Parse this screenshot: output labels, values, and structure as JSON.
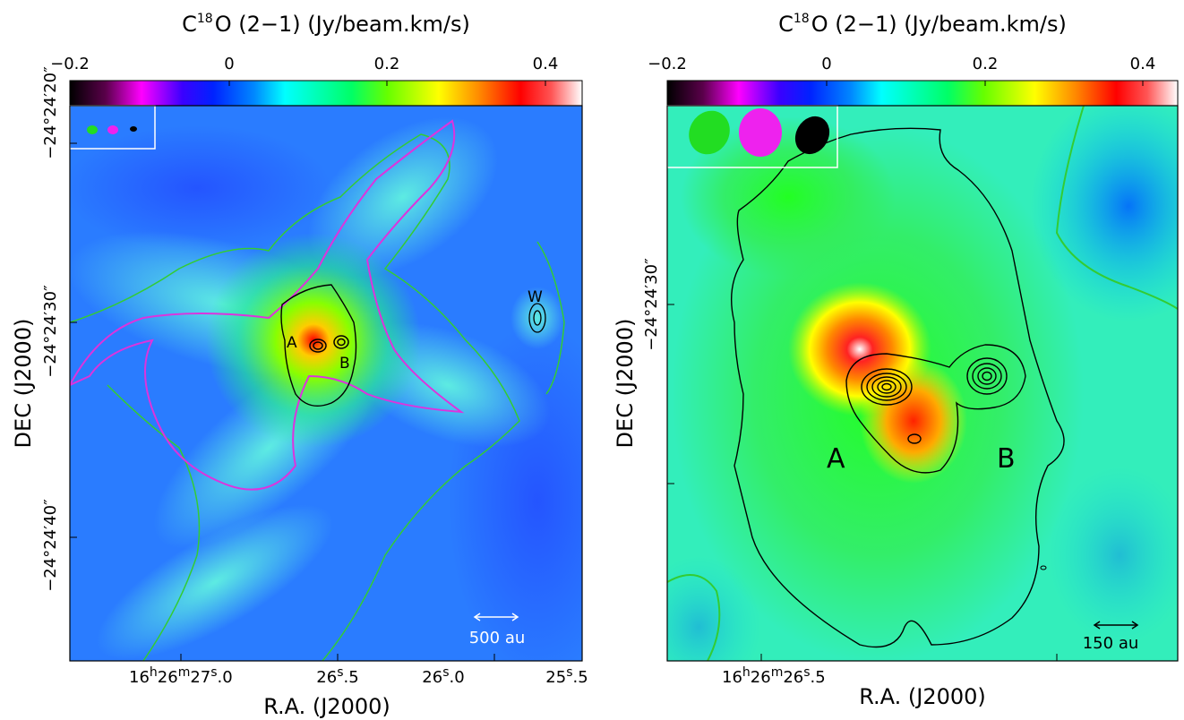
{
  "panels": [
    {
      "id": "left",
      "title_main": "C",
      "title_sup": "18",
      "title_rest": "O (2−1) (Jy/beam.km/s)",
      "colorbar_ticks": [
        "−0.2",
        "0",
        "0.2",
        "0.4"
      ],
      "xlabel": "R.A. (J2000)",
      "ylabel": "DEC (J2000)",
      "ra_ticks": [
        {
          "h": "16",
          "m": "26",
          "s": "27",
          "f": ".0",
          "prefix": true
        },
        {
          "s": "26",
          "f": ".5"
        },
        {
          "s": "26",
          "f": ".0"
        },
        {
          "s": "25",
          "f": ".5"
        }
      ],
      "dec_ticks": [
        "−24°24′20″",
        "−24°24′30″",
        "−24°24′40″"
      ],
      "labels": {
        "a": "A",
        "b": "B",
        "w": "W"
      },
      "scalebar": "500 au",
      "beam_colors": [
        "#22dd22",
        "#ee22ee",
        "#000000"
      ]
    },
    {
      "id": "right",
      "title_main": "C",
      "title_sup": "18",
      "title_rest": "O (2−1) (Jy/beam.km/s)",
      "colorbar_ticks": [
        "−0.2",
        "0",
        "0.2",
        "0.4"
      ],
      "xlabel": "R.A. (J2000)",
      "ylabel": "DEC (J2000)",
      "ra_ticks": [
        {
          "h": "16",
          "m": "26",
          "s": "26",
          "f": ".5",
          "prefix": true
        }
      ],
      "dec_ticks": [
        "−24°24′30″"
      ],
      "labels": {
        "a": "A",
        "b": "B"
      },
      "scalebar": "150 au",
      "beam_colors": [
        "#22dd22",
        "#ee22ee",
        "#000000"
      ]
    }
  ],
  "chart_data": [
    {
      "type": "heatmap",
      "title": "C18O (2−1) (Jy/beam.km/s)",
      "xlabel": "R.A. (J2000)",
      "ylabel": "DEC (J2000)",
      "colorbar": {
        "min": -0.2,
        "max": 0.45,
        "ticks": [
          -0.2,
          0,
          0.2,
          0.4
        ],
        "colormap": [
          "#000000",
          "#ff00ff",
          "#0000ff",
          "#00ffff",
          "#00ff00",
          "#ffff00",
          "#ff0000",
          "#ffffff"
        ]
      },
      "ra_ticks": [
        "16h26m27.0s",
        "26.5s",
        "26.0s",
        "25.5s"
      ],
      "dec_ticks": [
        "-24°24'20\"",
        "-24°24'30\"",
        "-24°24'40\""
      ],
      "sources": [
        "A",
        "B",
        "W"
      ],
      "scalebar": "500 au"
    },
    {
      "type": "heatmap",
      "title": "C18O (2−1) (Jy/beam.km/s)",
      "xlabel": "R.A. (J2000)",
      "ylabel": "DEC (J2000)",
      "colorbar": {
        "min": -0.2,
        "max": 0.45,
        "ticks": [
          -0.2,
          0,
          0.2,
          0.4
        ]
      },
      "ra_ticks": [
        "16h26m26.5s"
      ],
      "dec_ticks": [
        "-24°24'30\""
      ],
      "sources": [
        "A",
        "B"
      ],
      "scalebar": "150 au"
    }
  ]
}
